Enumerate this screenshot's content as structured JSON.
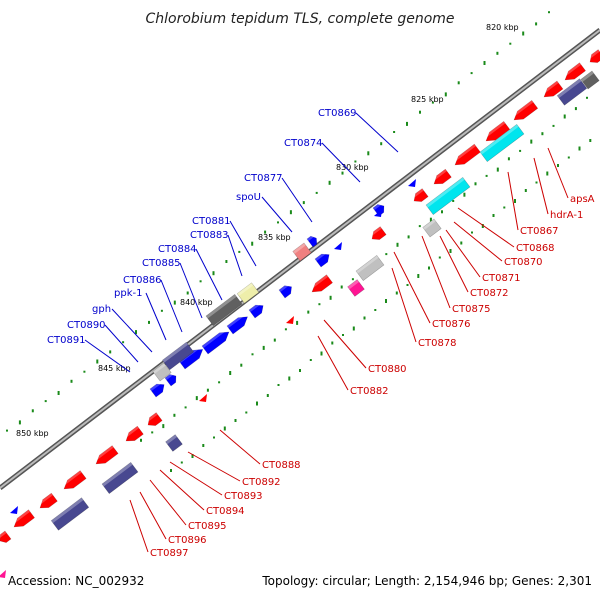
{
  "title": "Chlorobium tepidum TLS, complete genome",
  "accession": "Accession: NC_002932",
  "summary": "Topology: circular; Length: 2,154,946 bp; Genes: 2,301",
  "colors": {
    "backbone": "#808080",
    "cds_forward": "#0000ff",
    "cds_reverse": "#ff0000",
    "dark_slate": "#484890",
    "cyan": "#00e5ee",
    "gray": "#c0c0c0",
    "dark_gray": "#606060",
    "magenta": "#ff1493",
    "pale_yellow": "#eeeeaa",
    "pink": "#f08080",
    "gc_dots": "#1a8a1a",
    "label_forward": "#0000cc",
    "label_reverse": "#cc0000"
  },
  "ticks": [
    {
      "label": "820 kbp"
    },
    {
      "label": "825 kbp"
    },
    {
      "label": "830 kbp"
    },
    {
      "label": "835 kbp"
    },
    {
      "label": "840 kbp"
    },
    {
      "label": "845 kbp"
    },
    {
      "label": "850 kbp"
    }
  ],
  "forward_labels": [
    {
      "name": "CT0869"
    },
    {
      "name": "CT0874"
    },
    {
      "name": "CT0877"
    },
    {
      "name": "spoU"
    },
    {
      "name": "CT0881"
    },
    {
      "name": "CT0883"
    },
    {
      "name": "CT0884"
    },
    {
      "name": "CT0885"
    },
    {
      "name": "CT0886"
    },
    {
      "name": "ppk-1"
    },
    {
      "name": "gph"
    },
    {
      "name": "CT0890"
    },
    {
      "name": "CT0891"
    }
  ],
  "reverse_labels": [
    {
      "name": "apsA"
    },
    {
      "name": "hdrA-1"
    },
    {
      "name": "CT0867"
    },
    {
      "name": "CT0868"
    },
    {
      "name": "CT0870"
    },
    {
      "name": "CT0871"
    },
    {
      "name": "CT0872"
    },
    {
      "name": "CT0875"
    },
    {
      "name": "CT0876"
    },
    {
      "name": "CT0878"
    },
    {
      "name": "CT0880"
    },
    {
      "name": "CT0882"
    },
    {
      "name": "CT0888"
    },
    {
      "name": "CT0892"
    },
    {
      "name": "CT0893"
    },
    {
      "name": "CT0894"
    },
    {
      "name": "CT0895"
    },
    {
      "name": "CT0896"
    },
    {
      "name": "CT0897"
    }
  ]
}
